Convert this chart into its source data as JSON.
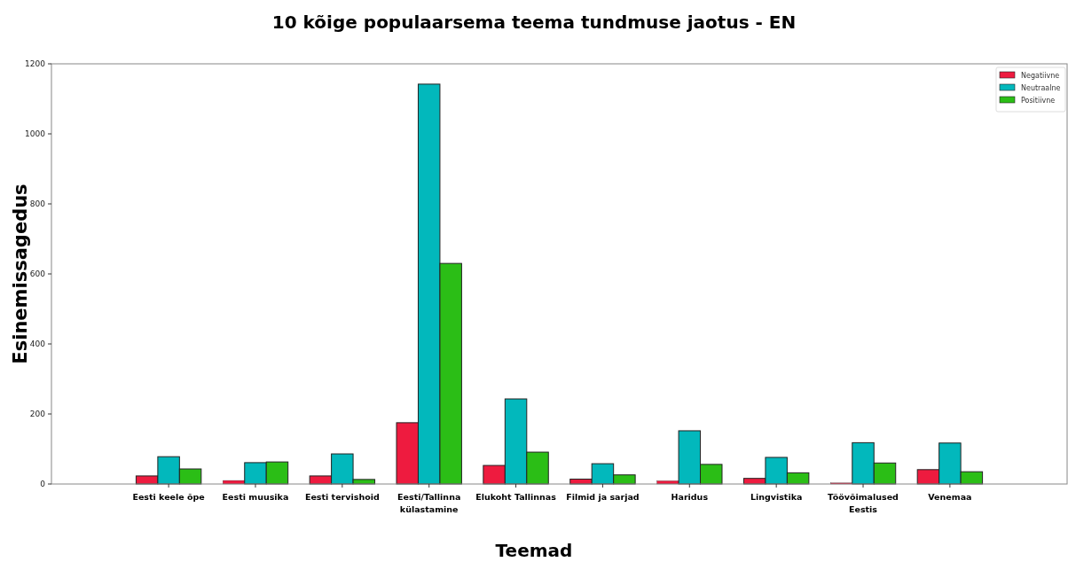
{
  "chart_data": {
    "type": "bar",
    "title": "10 kõige populaarsema teema tundmuse jaotus - EN",
    "xlabel": "Teemad",
    "ylabel": "Esinemissagedus",
    "categories": [
      "Eesti keele õpe",
      "Eesti muusika",
      "Eesti tervishoid",
      "Eesti/Tallinna\nkülastamine",
      "Elukoht Tallinnas",
      "Filmid ja sarjad",
      "Haridus",
      "Lingvistika",
      "Töövõimalused\nEestis",
      "Venemaa"
    ],
    "series": [
      {
        "name": "Negatiivne",
        "color": "#ee1b3f",
        "values": [
          23,
          10,
          23,
          175,
          53,
          14,
          9,
          16,
          3,
          41
        ]
      },
      {
        "name": "Neutraalne",
        "color": "#02b8bc",
        "values": [
          78,
          61,
          86,
          1142,
          243,
          58,
          152,
          76,
          118,
          117
        ]
      },
      {
        "name": "Positiivne",
        "color": "#2bbe16",
        "values": [
          43,
          63,
          13,
          630,
          91,
          26,
          56,
          32,
          60,
          35
        ]
      }
    ],
    "ylim": [
      0,
      1200
    ],
    "yticks": [
      0,
      200,
      400,
      600,
      800,
      1000,
      1200
    ],
    "legend": "top right"
  }
}
